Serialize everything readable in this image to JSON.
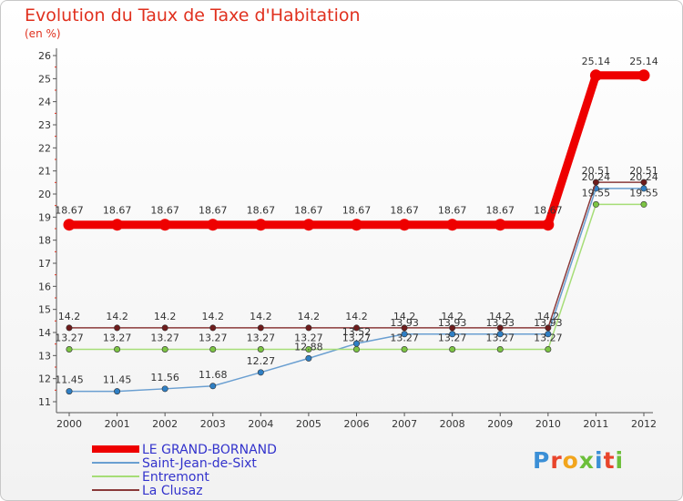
{
  "title": "Evolution du Taux de Taxe d'Habitation",
  "unit_label": "(en %)",
  "brand": {
    "text": "Proxiti",
    "colors": [
      "#3b8fd6",
      "#e8452c",
      "#f2a51c",
      "#6cbf3a",
      "#3b8fd6",
      "#e8452c",
      "#6cbf3a"
    ]
  },
  "chart_data": {
    "type": "line",
    "title": "Evolution du Taux de Taxe d'Habitation",
    "ylabel": "(en %)",
    "xlabel": "",
    "categories": [
      "2000",
      "2001",
      "2002",
      "2003",
      "2004",
      "2005",
      "2006",
      "2007",
      "2008",
      "2009",
      "2010",
      "2011",
      "2012"
    ],
    "yticks": [
      "11",
      "12",
      "13",
      "14",
      "15",
      "16",
      "17",
      "18",
      "19",
      "20",
      "21",
      "22",
      "23",
      "24",
      "25",
      "26"
    ],
    "ylim": [
      11,
      26
    ],
    "grid": false,
    "legend_position": "bottom-left",
    "series": [
      {
        "name": "LE GRAND-BORNAND",
        "color": "#ee0000",
        "emphasis": true,
        "values": [
          18.67,
          18.67,
          18.67,
          18.67,
          18.67,
          18.67,
          18.67,
          18.67,
          18.67,
          18.67,
          18.67,
          25.14,
          25.14
        ],
        "labels": [
          "18.67",
          "18.67",
          "18.67",
          "18.67",
          "18.67",
          "18.67",
          "18.67",
          "18.67",
          "18.67",
          "18.67",
          "18.67",
          "25.14",
          "25.14"
        ]
      },
      {
        "name": "Saint-Jean-de-Sixt",
        "color": "#6a9fd1",
        "marker": "#2f7fc4",
        "values": [
          11.45,
          11.45,
          11.56,
          11.68,
          12.27,
          12.88,
          13.52,
          13.93,
          13.93,
          13.93,
          13.93,
          20.24,
          20.24
        ],
        "labels": [
          "11.45",
          "11.45",
          "11.56",
          "11.68",
          "12.27",
          "12.88",
          "13.52",
          "13.93",
          "13.93",
          "13.93",
          "13.93",
          "20.24",
          "20.24"
        ]
      },
      {
        "name": "Entremont",
        "color": "#a6dd77",
        "marker": "#7cc444",
        "values": [
          13.27,
          13.27,
          13.27,
          13.27,
          13.27,
          13.27,
          13.27,
          13.27,
          13.27,
          13.27,
          13.27,
          19.55,
          19.55
        ],
        "labels": [
          "13.27",
          "13.27",
          "13.27",
          "13.27",
          "13.27",
          "13.27",
          "13.27",
          "13.27",
          "13.27",
          "13.27",
          "13.27",
          "19.55",
          "19.55"
        ]
      },
      {
        "name": "La Clusaz",
        "color": "#8a3a3a",
        "marker": "#6e1c1c",
        "values": [
          14.2,
          14.2,
          14.2,
          14.2,
          14.2,
          14.2,
          14.2,
          14.2,
          14.2,
          14.2,
          14.2,
          20.51,
          20.51
        ],
        "labels": [
          "14.2",
          "14.2",
          "14.2",
          "14.2",
          "14.2",
          "14.2",
          "14.2",
          "14.2",
          "14.2",
          "14.2",
          "14.2",
          "20.51",
          "20.51"
        ]
      }
    ]
  }
}
